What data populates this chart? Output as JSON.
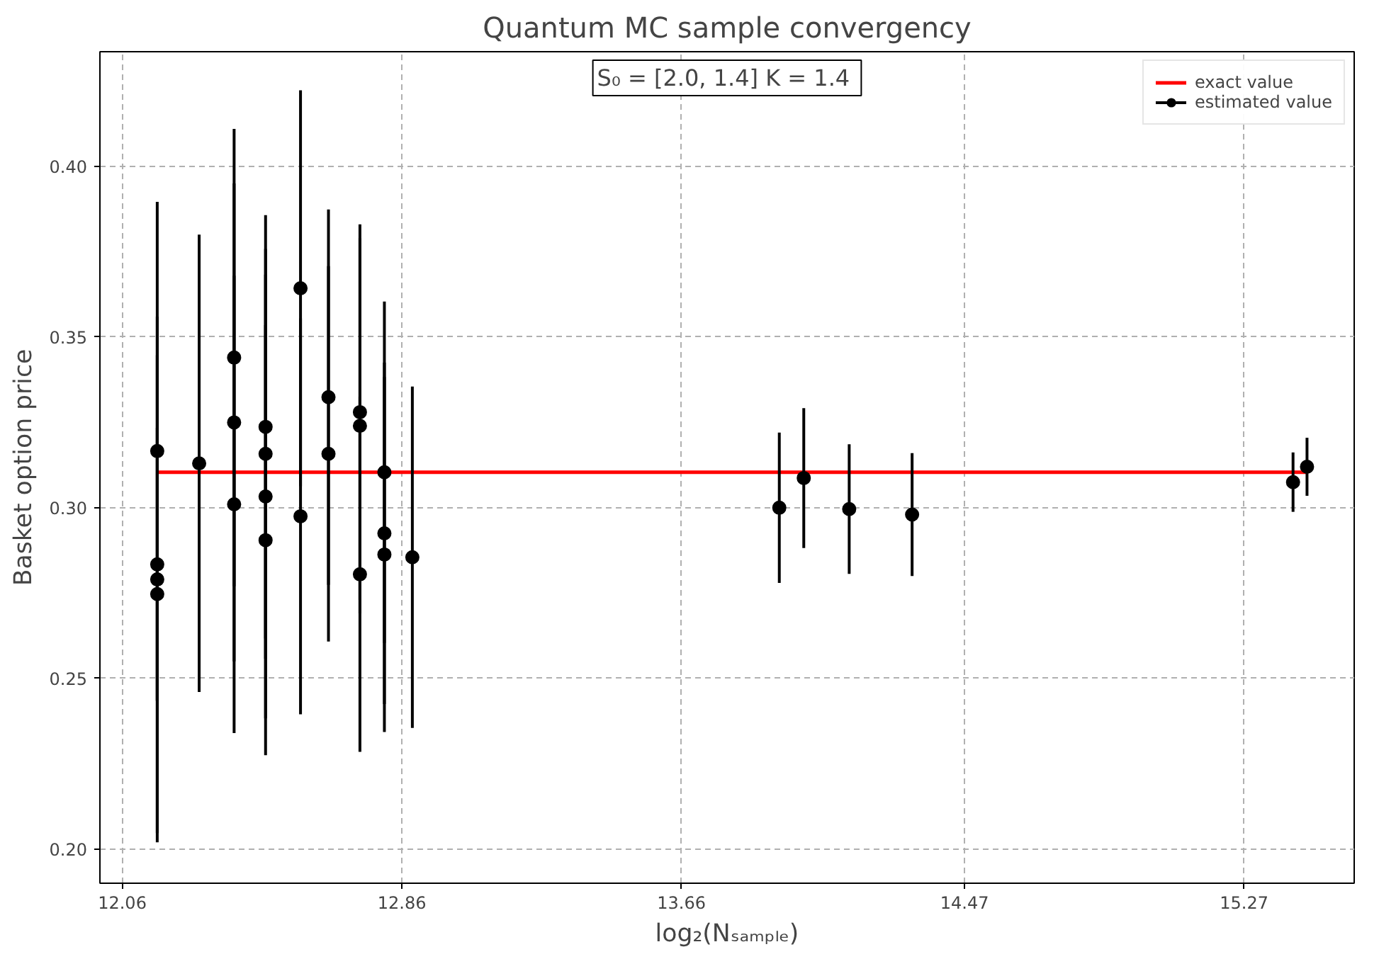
{
  "chart_data": {
    "type": "scatter",
    "title": "Quantum MC sample convergency",
    "xlabel": "log₂(Nₛₐₘₚₗₑ)",
    "ylabel": "Basket option price",
    "annotations": [
      "S₀ = [2.0, 1.4]  K = 1.4"
    ],
    "xlim": [
      11.996,
      15.585
    ],
    "ylim": [
      0.19,
      0.4336
    ],
    "xticks": [
      12.06,
      12.86,
      13.66,
      14.47,
      15.27
    ],
    "yticks": [
      {
        "value": 0.2,
        "label": "0.20"
      },
      0.25,
      {
        "value": 0.3,
        "label": "0.30"
      },
      0.35,
      {
        "value": 0.4,
        "label": "0.40"
      }
    ],
    "grid": true,
    "legend": "top right",
    "series": [
      {
        "name": "exact value",
        "type": "line",
        "color": "#ff0000",
        "line_style": "solid",
        "marker": "none",
        "x": [
          12.16,
          15.45
        ],
        "values": [
          0.3104,
          0.3104
        ]
      },
      {
        "name": "estimated value",
        "color": "#000000",
        "marker": "circle",
        "x": [
          12.16,
          12.16,
          12.16,
          12.16,
          12.28,
          12.38,
          12.38,
          12.38,
          12.47,
          12.47,
          12.47,
          12.47,
          12.57,
          12.57,
          12.65,
          12.65,
          12.74,
          12.74,
          12.74,
          12.81,
          12.81,
          12.81,
          12.89,
          13.94,
          14.01,
          14.14,
          14.32,
          15.41,
          15.45
        ],
        "values": [
          0.3166,
          0.2834,
          0.279,
          0.2747,
          0.313,
          0.344,
          0.325,
          0.301,
          0.3237,
          0.3158,
          0.3033,
          0.2905,
          0.3643,
          0.2975,
          0.3324,
          0.3158,
          0.328,
          0.324,
          0.2805,
          0.3104,
          0.2925,
          0.2863,
          0.2855,
          0.3,
          0.3087,
          0.2996,
          0.298,
          0.3075,
          0.312
        ],
        "errors": [
          0.073,
          0.04,
          0.077,
          0.07,
          0.067,
          0.067,
          0.07,
          0.067,
          0.062,
          0.06,
          0.065,
          0.063,
          0.058,
          0.058,
          0.055,
          0.055,
          0.055,
          0.055,
          0.052,
          0.05,
          0.05,
          0.052,
          0.05,
          0.022,
          0.0205,
          0.019,
          0.018,
          0.0087,
          0.0085
        ]
      }
    ]
  }
}
